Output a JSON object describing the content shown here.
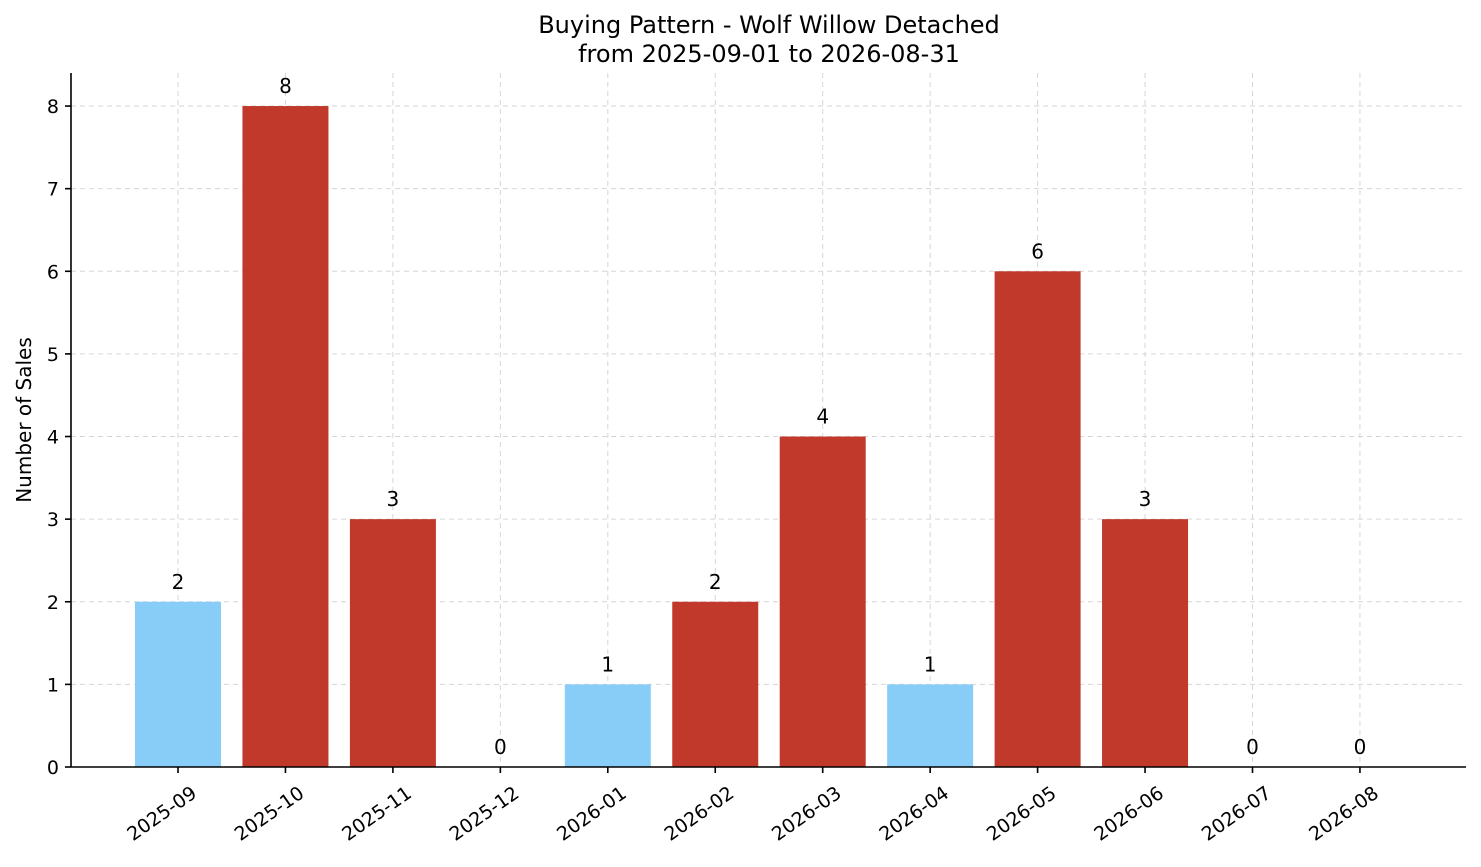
{
  "chart_data": {
    "type": "bar",
    "title": "Buying Pattern - Wolf Willow Detached",
    "subtitle": "from 2025-09-01 to 2026-08-31",
    "xlabel": "",
    "ylabel": "Number of Sales",
    "categories": [
      "2025-09",
      "2025-10",
      "2025-11",
      "2025-12",
      "2026-01",
      "2026-02",
      "2026-03",
      "2026-04",
      "2026-05",
      "2026-06",
      "2026-07",
      "2026-08"
    ],
    "values": [
      2,
      8,
      3,
      0,
      1,
      2,
      4,
      1,
      6,
      3,
      0,
      0
    ],
    "bar_colors": [
      "#87cdf8",
      "#c0392b",
      "#c0392b",
      "#c0392b",
      "#87cdf8",
      "#c0392b",
      "#c0392b",
      "#87cdf8",
      "#c0392b",
      "#c0392b",
      "#c0392b",
      "#c0392b"
    ],
    "data_labels": [
      "2",
      "8",
      "3",
      "0",
      "1",
      "2",
      "4",
      "1",
      "6",
      "3",
      "0",
      "0"
    ],
    "yticks": [
      "0",
      "1",
      "2",
      "3",
      "4",
      "5",
      "6",
      "7",
      "8"
    ],
    "ylim": [
      0,
      8.4
    ],
    "grid": true
  }
}
